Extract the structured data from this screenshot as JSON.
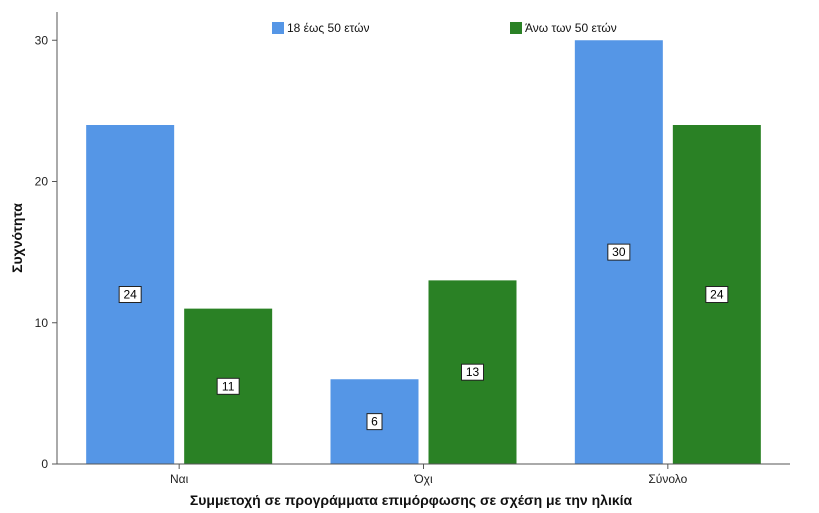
{
  "chart_data": {
    "type": "bar",
    "categories": [
      "Ναι",
      "Όχι",
      "Σύνολο"
    ],
    "series": [
      {
        "name": "18 έως 50 ετών",
        "values": [
          24,
          6,
          30
        ],
        "color": "#5596e6"
      },
      {
        "name": "Άνω των 50 ετών",
        "values": [
          11,
          13,
          24
        ],
        "color": "#2a8125"
      }
    ],
    "title": "",
    "xlabel": "Συμμετοχή σε προγράμματα επιμόρφωσης σε σχέση με την ηλικία",
    "ylabel": "Συχνότητα",
    "ylim": [
      0,
      32
    ],
    "yticks": [
      0,
      10,
      20,
      30
    ],
    "grid": false,
    "legend_position": "top-center",
    "data_labels": true
  }
}
